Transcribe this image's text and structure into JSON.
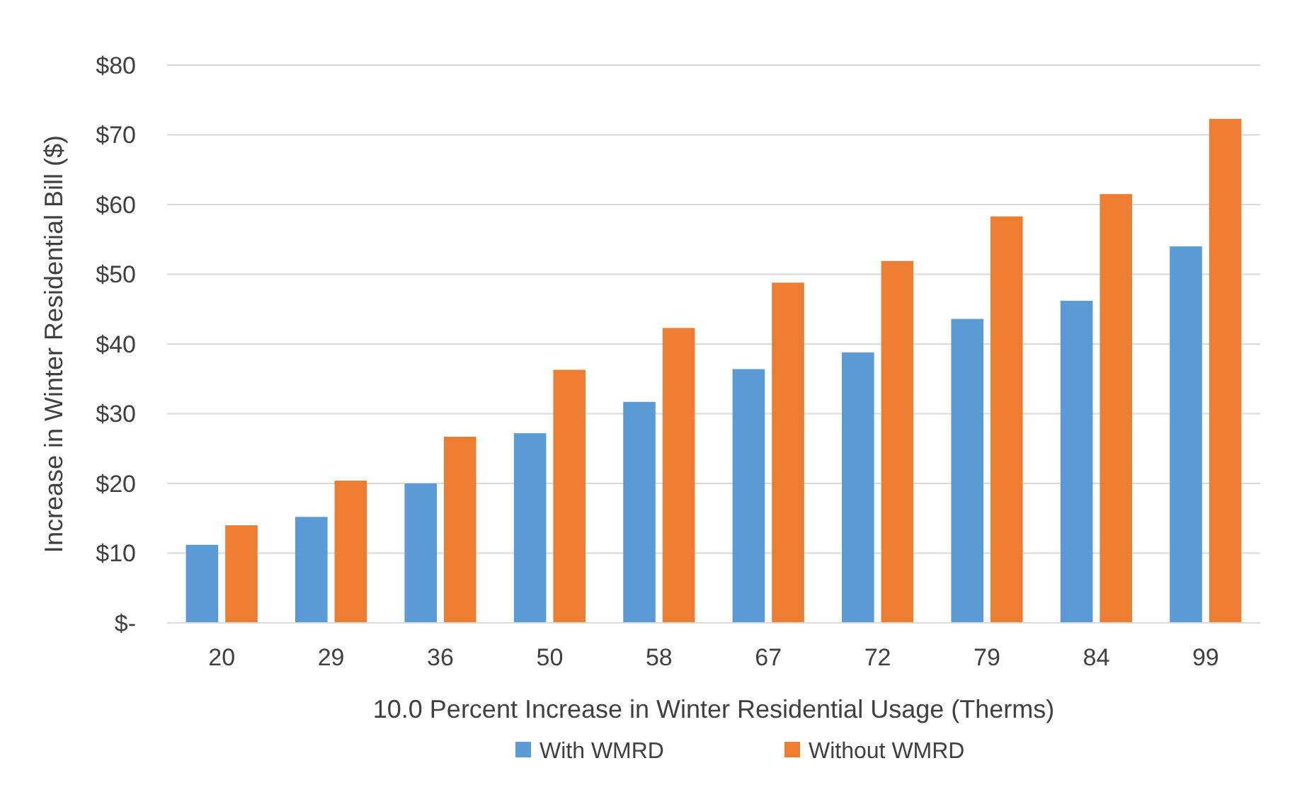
{
  "chart_data": {
    "type": "bar",
    "xlabel": "10.0 Percent Increase in Winter Residential Usage (Therms)",
    "ylabel": "Increase in Winter Residential Bill ($)",
    "categories": [
      "20",
      "29",
      "36",
      "50",
      "58",
      "67",
      "72",
      "79",
      "84",
      "99"
    ],
    "series": [
      {
        "name": "With WMRD",
        "color": "#5b9bd5",
        "values": [
          11.2,
          15.2,
          20,
          27.2,
          31.7,
          36.4,
          38.8,
          43.6,
          46.2,
          54
        ]
      },
      {
        "name": "Without WMRD",
        "color": "#ed7d31",
        "values": [
          14,
          20.4,
          26.7,
          36.3,
          42.3,
          48.8,
          51.9,
          58.3,
          61.5,
          72.3
        ]
      }
    ],
    "ylim": [
      0,
      80
    ],
    "yticks": [
      {
        "value": 0,
        "label": "$-"
      },
      {
        "value": 10,
        "label": "$10"
      },
      {
        "value": 20,
        "label": "$20"
      },
      {
        "value": 30,
        "label": "$30"
      },
      {
        "value": 40,
        "label": "$40"
      },
      {
        "value": 50,
        "label": "$50"
      },
      {
        "value": 60,
        "label": "$60"
      },
      {
        "value": 70,
        "label": "$70"
      },
      {
        "value": 80,
        "label": "$80"
      }
    ],
    "grid": "y",
    "legend": "bottom"
  }
}
